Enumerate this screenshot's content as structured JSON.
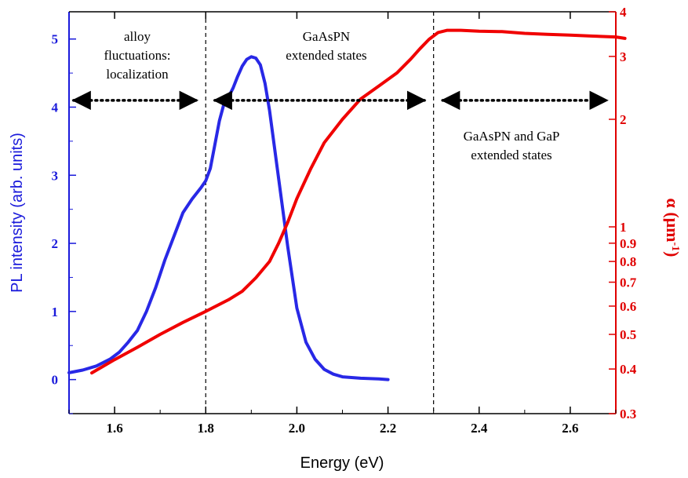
{
  "chart_data": {
    "type": "line",
    "xlabel": "Energy (eV)",
    "ylabel_left": "PL intensity (arb. units)",
    "ylabel_right_main": "α (μm",
    "ylabel_right_sup": "-1",
    "ylabel_right_end": ")",
    "xlim": [
      1.5,
      2.7
    ],
    "ylim_left": [
      -0.5,
      5.4
    ],
    "ylim_right": [
      0.3,
      4.0
    ],
    "right_scale": "log",
    "x_ticks": [
      1.6,
      1.8,
      2.0,
      2.2,
      2.4,
      2.6
    ],
    "x_tick_labels": [
      "1.6",
      "1.8",
      "2.0",
      "2.2",
      "2.4",
      "2.6"
    ],
    "left_ticks": [
      0,
      1,
      2,
      3,
      4,
      5
    ],
    "left_tick_labels": [
      "0",
      "1",
      "2",
      "3",
      "4",
      "5"
    ],
    "right_ticks": [
      0.3,
      0.4,
      0.5,
      0.6,
      0.7,
      0.8,
      0.9,
      1,
      2,
      3,
      4
    ],
    "right_tick_labels": [
      "0.3",
      "0.4",
      "0.5",
      "0.6",
      "0.7",
      "0.8",
      "0.9",
      "1",
      "2",
      "3",
      "4"
    ],
    "colors": {
      "left_axis": "#1a1adb",
      "right_axis": "#e00000",
      "pl_series": "#2828e6",
      "alpha_series": "#f00000"
    },
    "vlines": [
      1.8,
      2.3
    ],
    "series": [
      {
        "axis": "left",
        "x": [
          1.5,
          1.53,
          1.56,
          1.59,
          1.61,
          1.63,
          1.65,
          1.67,
          1.69,
          1.71,
          1.73,
          1.75,
          1.77,
          1.79,
          1.8,
          1.81,
          1.82,
          1.83,
          1.84,
          1.85,
          1.86,
          1.87,
          1.88,
          1.89,
          1.9,
          1.91,
          1.92,
          1.93,
          1.94,
          1.95,
          1.96,
          1.97,
          1.98,
          1.99,
          2.0,
          2.02,
          2.04,
          2.06,
          2.08,
          2.1,
          2.14,
          2.18,
          2.2
        ],
        "y": [
          0.1,
          0.14,
          0.2,
          0.3,
          0.4,
          0.55,
          0.72,
          1.0,
          1.35,
          1.75,
          2.1,
          2.45,
          2.65,
          2.82,
          2.92,
          3.1,
          3.45,
          3.8,
          4.05,
          4.15,
          4.28,
          4.45,
          4.6,
          4.7,
          4.74,
          4.72,
          4.62,
          4.35,
          3.95,
          3.45,
          2.95,
          2.45,
          1.95,
          1.5,
          1.05,
          0.55,
          0.3,
          0.15,
          0.08,
          0.04,
          0.02,
          0.01,
          0.0
        ]
      },
      {
        "axis": "right",
        "x": [
          1.55,
          1.6,
          1.65,
          1.7,
          1.75,
          1.8,
          1.85,
          1.88,
          1.91,
          1.94,
          1.96,
          1.98,
          2.0,
          2.03,
          2.06,
          2.1,
          2.14,
          2.18,
          2.22,
          2.25,
          2.27,
          2.29,
          2.31,
          2.33,
          2.36,
          2.4,
          2.45,
          2.5,
          2.55,
          2.6,
          2.65,
          2.7,
          2.72
        ],
        "y": [
          0.39,
          0.425,
          0.46,
          0.5,
          0.54,
          0.58,
          0.625,
          0.66,
          0.72,
          0.8,
          0.9,
          1.03,
          1.2,
          1.45,
          1.72,
          2.0,
          2.28,
          2.48,
          2.7,
          2.95,
          3.15,
          3.35,
          3.5,
          3.55,
          3.55,
          3.53,
          3.52,
          3.48,
          3.46,
          3.44,
          3.42,
          3.4,
          3.37
        ]
      }
    ],
    "annotations": [
      {
        "lines": [
          "alloy",
          "fluctuations:",
          "localization"
        ]
      },
      {
        "lines": [
          "GaAsPN",
          "extended states"
        ]
      },
      {
        "lines": [
          "GaAsPN and GaP",
          "extended states"
        ]
      }
    ],
    "arrows": [
      {
        "x_from": 1.51,
        "x_to": 1.78,
        "y_left": 4.1
      },
      {
        "x_from": 1.82,
        "x_to": 2.28,
        "y_left": 4.1
      },
      {
        "x_from": 2.32,
        "x_to": 2.68,
        "y_left": 4.1
      }
    ]
  }
}
